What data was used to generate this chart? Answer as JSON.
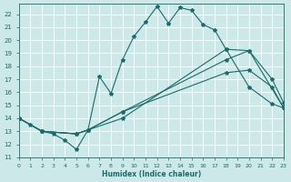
{
  "xlabel": "Humidex (Indice chaleur)",
  "background_color": "#cce8e8",
  "grid_color": "#ffffff",
  "line_color": "#1a6b6b",
  "xlim": [
    0,
    23
  ],
  "ylim": [
    11,
    22.8
  ],
  "xticks": [
    0,
    1,
    2,
    3,
    4,
    5,
    6,
    7,
    8,
    9,
    10,
    11,
    12,
    13,
    14,
    15,
    16,
    17,
    18,
    19,
    20,
    21,
    22,
    23
  ],
  "yticks": [
    11,
    12,
    13,
    14,
    15,
    16,
    17,
    18,
    19,
    20,
    21,
    22
  ],
  "line1_x": [
    0,
    1,
    2,
    3,
    4,
    5,
    6,
    7,
    8,
    9,
    10,
    11,
    12,
    13,
    14,
    15,
    16,
    17,
    18,
    20,
    22,
    23
  ],
  "line1_y": [
    14,
    13.5,
    13,
    12.8,
    12.3,
    11.6,
    13.1,
    17.2,
    15.9,
    18.5,
    20.3,
    21.4,
    22.6,
    21.3,
    22.5,
    22.3,
    21.2,
    20.8,
    19.3,
    16.4,
    15.1,
    14.8
  ],
  "line2_x": [
    0,
    2,
    5,
    6,
    9,
    18,
    20,
    22,
    23
  ],
  "line2_y": [
    14,
    13,
    12.8,
    13.1,
    14.5,
    17.5,
    17.7,
    16.4,
    14.8
  ],
  "line3_x": [
    0,
    2,
    5,
    6,
    9,
    18,
    20,
    22,
    23
  ],
  "line3_y": [
    14,
    13,
    12.8,
    13.1,
    14.5,
    18.5,
    19.2,
    17.0,
    15.2
  ],
  "line4_x": [
    0,
    2,
    5,
    9,
    18,
    20,
    23
  ],
  "line4_y": [
    14,
    13,
    12.8,
    14.0,
    19.3,
    19.2,
    14.8
  ]
}
